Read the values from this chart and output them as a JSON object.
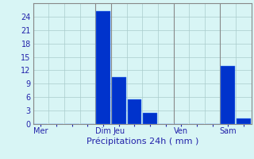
{
  "bar_values": [
    0,
    0,
    0,
    0,
    25.2,
    10.5,
    5.5,
    2.5,
    0,
    0,
    0,
    0,
    13.0,
    1.2
  ],
  "bar_color": "#0033cc",
  "bar_edge_color": "#4488ff",
  "background_color": "#d8f5f5",
  "grid_color": "#aacccc",
  "text_color": "#2222aa",
  "axis_line_color": "#888888",
  "ylim": [
    0,
    27
  ],
  "yticks": [
    0,
    3,
    6,
    9,
    12,
    15,
    18,
    21,
    24
  ],
  "xlabel": "Précipitations 24h ( mm )",
  "day_labels": [
    "Mer",
    "",
    "",
    "",
    "Dim",
    "Jeu",
    "",
    "",
    "",
    "Ven",
    "",
    "",
    "Sam",
    ""
  ],
  "tick_label_show": [
    0,
    4,
    5,
    9,
    12
  ],
  "num_bars": 14,
  "vline_positions": [
    -0.5,
    3.5,
    4.5,
    8.5,
    11.5
  ],
  "xlabel_fontsize": 8,
  "ytick_fontsize": 7,
  "xtick_fontsize": 7
}
